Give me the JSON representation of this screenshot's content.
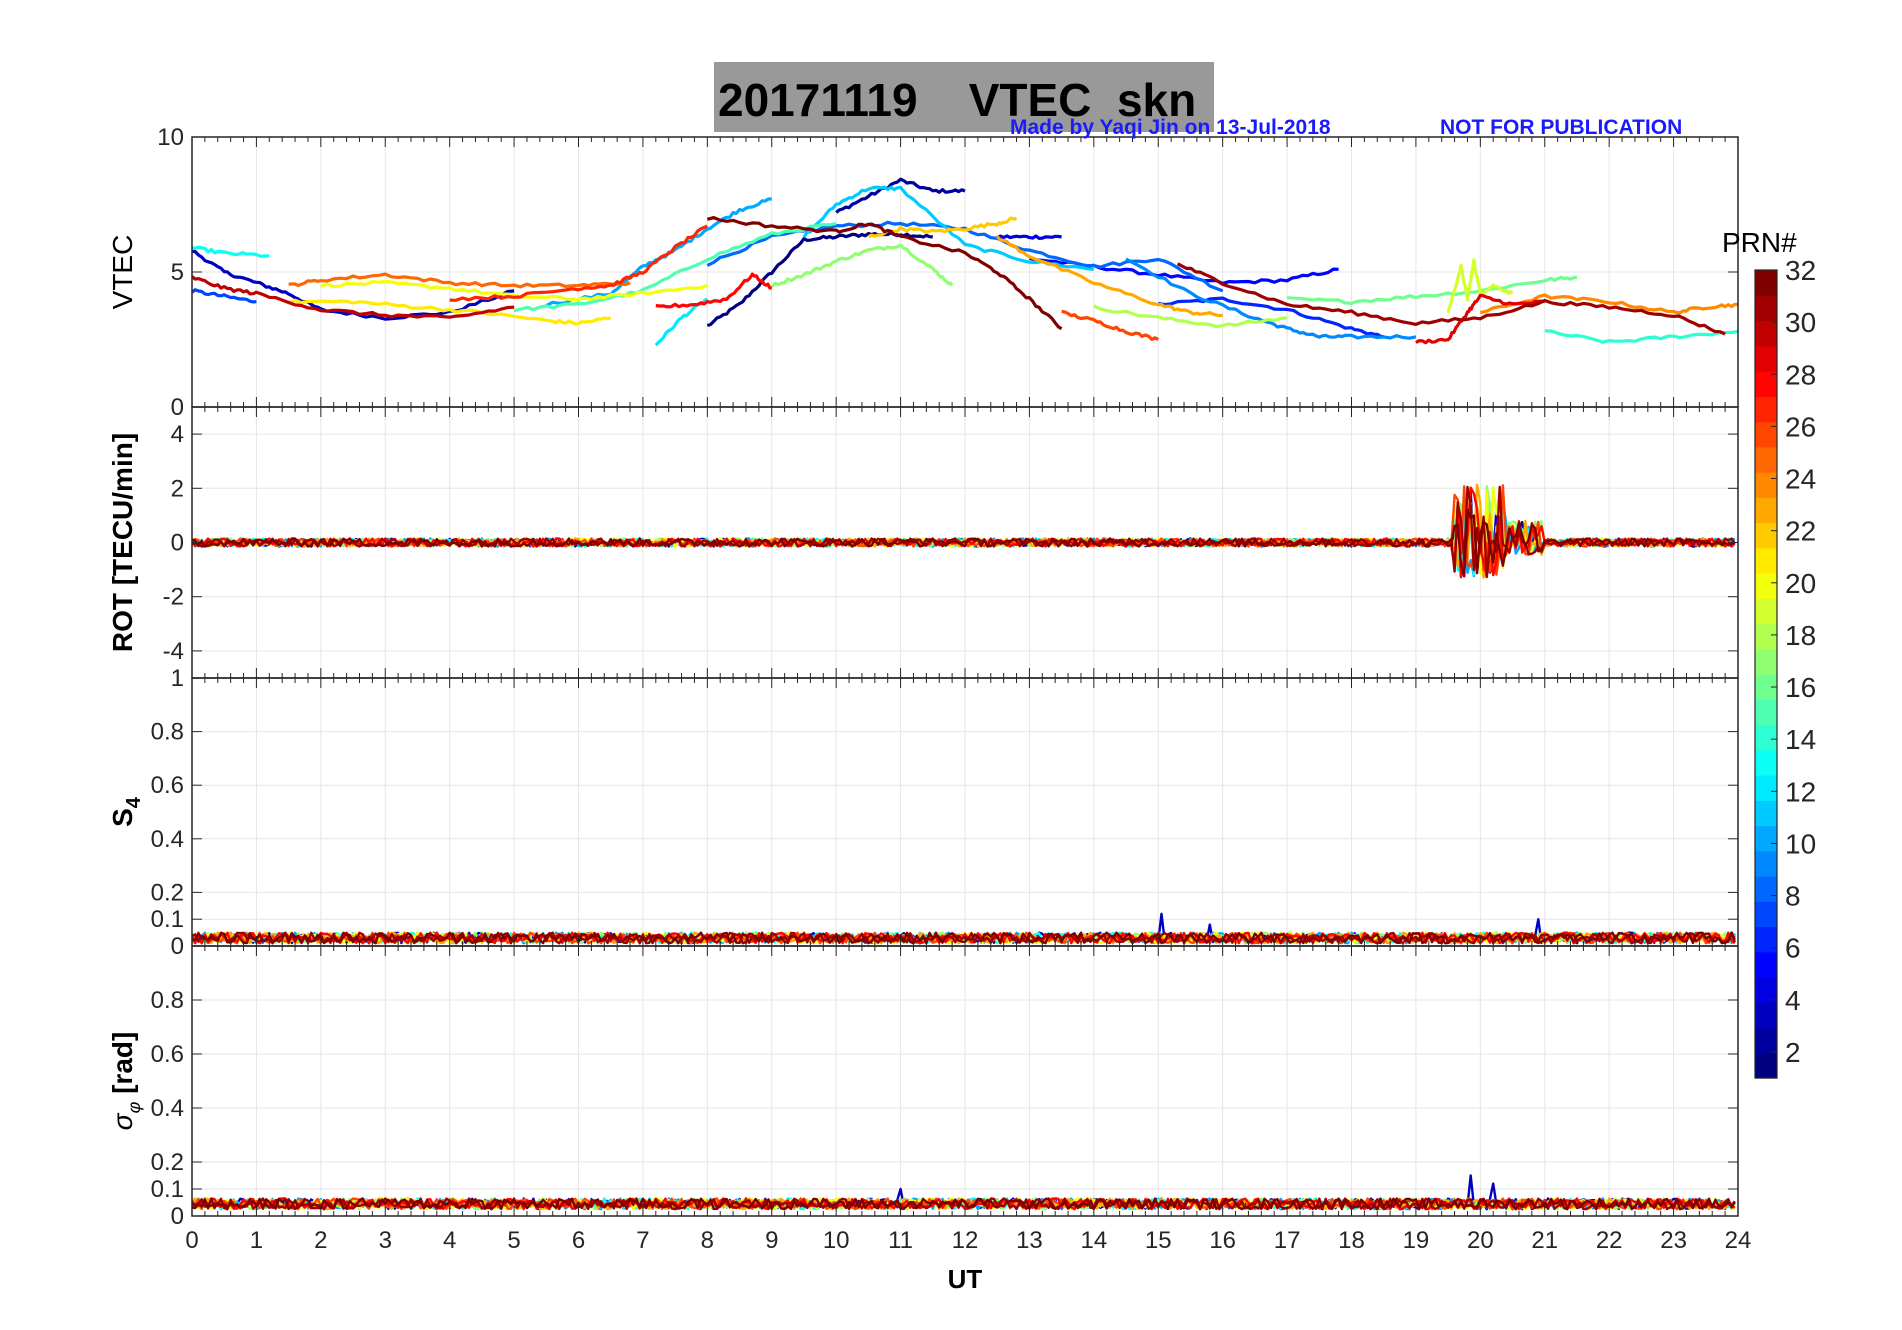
{
  "title": {
    "date": "20171119",
    "label": "VTEC  skn"
  },
  "credit": "Made by Yaqi Jin on 13-Jul-2018",
  "watermark": "NOT FOR PUBLICATION",
  "colorbar": {
    "label": "PRN#",
    "ticks": [
      "2",
      "4",
      "6",
      "8",
      "10",
      "12",
      "14",
      "16",
      "18",
      "20",
      "22",
      "24",
      "26",
      "28",
      "30",
      "32"
    ],
    "range": [
      1,
      32
    ],
    "colormap": "jet"
  },
  "xaxis": {
    "label": "UT",
    "ticks": [
      "0",
      "1",
      "2",
      "3",
      "4",
      "5",
      "6",
      "7",
      "8",
      "9",
      "10",
      "11",
      "12",
      "13",
      "14",
      "15",
      "16",
      "17",
      "18",
      "19",
      "20",
      "21",
      "22",
      "23",
      "24"
    ],
    "range": [
      0,
      24
    ]
  },
  "chart_data": [
    {
      "type": "line",
      "panel": "VTEC",
      "ylabel": "VTEC",
      "ylim": [
        0,
        10
      ],
      "yticks": [
        "0",
        "5",
        "10"
      ],
      "grid": true,
      "series": [
        {
          "prn": 1,
          "x": [
            8.0,
            8.5,
            9.0,
            9.5,
            10.0,
            10.5,
            11.0,
            11.5
          ],
          "y": [
            3.0,
            3.8,
            5.0,
            6.2,
            6.3,
            6.4,
            6.4,
            6.3
          ]
        },
        {
          "prn": 2,
          "x": [
            10.0,
            10.5,
            11.0,
            11.5,
            12.0
          ],
          "y": [
            7.2,
            7.8,
            8.4,
            8.0,
            8.0
          ]
        },
        {
          "prn": 3,
          "x": [
            0.0,
            0.5,
            1.0,
            1.5,
            2.0,
            3.0,
            4.0,
            5.0
          ],
          "y": [
            5.8,
            5.0,
            4.6,
            4.2,
            3.6,
            3.3,
            3.5,
            4.3
          ]
        },
        {
          "prn": 4,
          "x": [
            12.5,
            13.0,
            13.5
          ],
          "y": [
            6.3,
            6.3,
            6.3
          ]
        },
        {
          "prn": 5,
          "x": [
            13.0,
            14.0,
            15.0,
            16.0,
            17.0,
            17.8
          ],
          "y": [
            5.5,
            5.2,
            4.9,
            4.6,
            4.7,
            5.1
          ]
        },
        {
          "prn": 6,
          "x": [
            15.0,
            16.0,
            17.0,
            18.0,
            18.5
          ],
          "y": [
            3.8,
            4.0,
            3.6,
            2.9,
            2.6
          ]
        },
        {
          "prn": 7,
          "x": [
            0.0,
            0.5,
            1.0
          ],
          "y": [
            4.3,
            4.1,
            3.9
          ]
        },
        {
          "prn": 8,
          "x": [
            8.0,
            9.0,
            10.0,
            11.0,
            12.0,
            13.0,
            14.0,
            15.0,
            16.0
          ],
          "y": [
            5.3,
            6.3,
            6.7,
            6.8,
            6.6,
            5.8,
            5.2,
            5.5,
            4.3
          ]
        },
        {
          "prn": 9,
          "x": [
            14.5,
            15.5,
            16.5,
            17.0,
            17.5,
            18.0,
            19.0
          ],
          "y": [
            5.5,
            4.2,
            3.3,
            2.9,
            2.6,
            2.6,
            2.6
          ]
        },
        {
          "prn": 10,
          "x": [
            5.5,
            6.5,
            7.0,
            7.5,
            8.0,
            8.5,
            9.0
          ],
          "y": [
            3.8,
            4.2,
            5.2,
            5.8,
            6.6,
            7.3,
            7.7
          ]
        },
        {
          "prn": 11,
          "x": [
            9.5,
            10.0,
            10.5,
            11.0,
            12.0,
            13.0,
            14.0
          ],
          "y": [
            6.3,
            7.5,
            8.1,
            8.1,
            6.0,
            5.4,
            5.1
          ]
        },
        {
          "prn": 12,
          "x": [
            7.2,
            7.6,
            8.0
          ],
          "y": [
            2.3,
            3.3,
            4.0
          ]
        },
        {
          "prn": 13,
          "x": [
            0.0,
            0.5,
            1.2
          ],
          "y": [
            5.9,
            5.7,
            5.6
          ]
        },
        {
          "prn": 14,
          "x": [
            21.0,
            22.0,
            23.0,
            24.0
          ],
          "y": [
            2.8,
            2.4,
            2.6,
            2.8
          ]
        },
        {
          "prn": 15,
          "x": [
            5.0,
            6.0,
            7.0,
            8.0,
            9.0,
            10.0
          ],
          "y": [
            3.6,
            3.8,
            4.3,
            5.5,
            6.4,
            6.8
          ]
        },
        {
          "prn": 16,
          "x": [
            17.0,
            18.0,
            19.0,
            20.0,
            21.0,
            21.5
          ],
          "y": [
            4.0,
            3.9,
            4.1,
            4.3,
            4.7,
            4.8
          ]
        },
        {
          "prn": 17,
          "x": [
            9.0,
            9.5,
            10.0,
            10.5,
            11.0,
            11.5,
            11.8
          ],
          "y": [
            4.5,
            4.9,
            5.4,
            5.8,
            6.0,
            5.1,
            4.5
          ]
        },
        {
          "prn": 18,
          "x": [
            14.0,
            15.0,
            16.0,
            17.0
          ],
          "y": [
            3.7,
            3.3,
            3.0,
            3.3
          ]
        },
        {
          "prn": 19,
          "x": [
            19.5,
            19.7,
            19.8,
            19.9,
            20.0,
            20.2,
            20.5
          ],
          "y": [
            3.5,
            5.2,
            4.0,
            5.4,
            4.2,
            4.5,
            4.2
          ]
        },
        {
          "prn": 20,
          "x": [
            2.0,
            3.0,
            4.0,
            5.0,
            6.0,
            7.0,
            8.0
          ],
          "y": [
            4.5,
            4.6,
            4.4,
            4.1,
            4.0,
            4.2,
            4.5
          ]
        },
        {
          "prn": 21,
          "x": [
            1.5,
            2.5,
            3.5,
            4.5,
            5.5,
            6.0,
            6.5
          ],
          "y": [
            3.9,
            3.9,
            3.7,
            3.5,
            3.2,
            3.1,
            3.3
          ]
        },
        {
          "prn": 22,
          "x": [
            10.5,
            11.0,
            11.5,
            12.0,
            12.5,
            12.8
          ],
          "y": [
            6.3,
            6.6,
            6.5,
            6.6,
            6.8,
            7.0
          ]
        },
        {
          "prn": 23,
          "x": [
            12.5,
            13.0,
            14.0,
            15.0,
            15.5,
            16.0
          ],
          "y": [
            6.3,
            5.6,
            4.6,
            3.8,
            3.5,
            3.4
          ]
        },
        {
          "prn": 24,
          "x": [
            20.0,
            21.0,
            22.0,
            23.0,
            23.5,
            24.0
          ],
          "y": [
            3.5,
            4.1,
            3.9,
            3.5,
            3.7,
            3.8
          ]
        },
        {
          "prn": 25,
          "x": [
            1.5,
            2.0,
            3.0,
            4.0,
            5.0,
            6.0,
            6.8
          ],
          "y": [
            4.5,
            4.7,
            4.9,
            4.6,
            4.5,
            4.5,
            4.6
          ]
        },
        {
          "prn": 26,
          "x": [
            13.5,
            14.0,
            14.5,
            15.0
          ],
          "y": [
            3.5,
            3.2,
            2.8,
            2.5
          ]
        },
        {
          "prn": 27,
          "x": [
            4.0,
            5.0,
            6.0,
            6.5,
            7.0,
            7.5,
            8.0
          ],
          "y": [
            4.0,
            4.1,
            4.4,
            4.5,
            5.0,
            5.9,
            6.7
          ]
        },
        {
          "prn": 28,
          "x": [
            7.2,
            7.8,
            8.3,
            8.7,
            9.0
          ],
          "y": [
            3.7,
            3.8,
            4.0,
            4.9,
            4.4
          ]
        },
        {
          "prn": 29,
          "x": [
            19.0,
            19.5,
            19.8,
            20.0,
            20.5,
            21.0
          ],
          "y": [
            2.4,
            2.5,
            3.5,
            4.1,
            3.8,
            3.9
          ]
        },
        {
          "prn": 30,
          "x": [
            0.0,
            0.5,
            1.0,
            2.0,
            3.0,
            4.0,
            5.0
          ],
          "y": [
            4.8,
            4.4,
            4.2,
            3.6,
            3.4,
            3.3,
            3.7
          ]
        },
        {
          "prn": 31,
          "x": [
            15.3,
            16.0,
            17.0,
            18.0,
            19.0,
            20.0,
            21.0,
            22.0,
            23.0,
            23.8
          ],
          "y": [
            5.3,
            4.6,
            3.8,
            3.5,
            3.1,
            3.3,
            3.9,
            3.7,
            3.4,
            2.7
          ]
        },
        {
          "prn": 32,
          "x": [
            8.0,
            9.0,
            10.0,
            10.5,
            11.0,
            12.0,
            12.5,
            13.0,
            13.5
          ],
          "y": [
            7.0,
            6.7,
            6.5,
            6.8,
            6.3,
            5.7,
            5.0,
            4.0,
            2.9
          ]
        }
      ]
    },
    {
      "type": "line",
      "panel": "ROT",
      "ylabel": "ROT [TECU/min]",
      "ylim": [
        -5,
        5
      ],
      "yticks": [
        "-4",
        "-2",
        "0",
        "2",
        "4"
      ],
      "grid": true,
      "baseline": 0,
      "noise_amplitude": 0.15,
      "event": {
        "x_start": 19.6,
        "x_end": 21.0,
        "peak_max": 2.3,
        "peak_min": -1.3
      }
    },
    {
      "type": "line",
      "panel": "S4",
      "ylabel": "S4",
      "ylim": [
        0,
        1
      ],
      "yticks": [
        "0",
        "0.1",
        "0.2",
        "0.4",
        "0.6",
        "0.8",
        "1"
      ],
      "grid": true,
      "baseline": 0.03,
      "noise_amplitude": 0.02,
      "spikes": [
        {
          "x": 15.05,
          "y": 0.12
        },
        {
          "x": 20.9,
          "y": 0.1
        },
        {
          "x": 15.8,
          "y": 0.08
        }
      ]
    },
    {
      "type": "line",
      "panel": "sigma_phi",
      "ylabel": "σ_φ [rad]",
      "ylim": [
        0,
        1
      ],
      "yticks": [
        "0",
        "0.1",
        "0.2",
        "0.4",
        "0.6",
        "0.8"
      ],
      "grid": true,
      "baseline": 0.045,
      "noise_amplitude": 0.02,
      "spikes": [
        {
          "x": 11.0,
          "y": 0.1
        },
        {
          "x": 19.85,
          "y": 0.15
        },
        {
          "x": 20.2,
          "y": 0.12
        }
      ]
    }
  ]
}
